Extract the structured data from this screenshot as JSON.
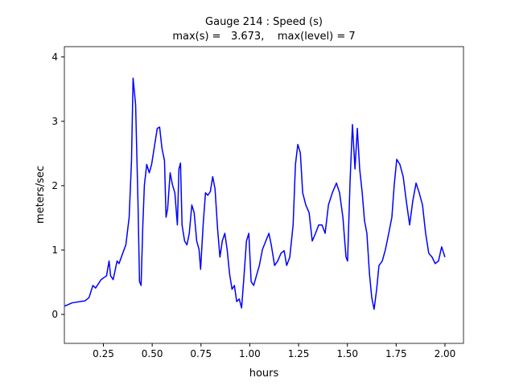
{
  "chart_data": {
    "type": "line",
    "title": "Gauge 214 : Speed (s)",
    "subtitle": "max(s) =   3.673,    max(level) = 7",
    "xlabel": "hours",
    "ylabel": "meters/sec",
    "xlim": [
      0.05,
      2.095
    ],
    "ylim": [
      -0.45,
      4.16
    ],
    "xticks": [
      {
        "value": 0.25,
        "label": "0.25"
      },
      {
        "value": 0.5,
        "label": "0.50"
      },
      {
        "value": 0.75,
        "label": "0.75"
      },
      {
        "value": 1.0,
        "label": "1.00"
      },
      {
        "value": 1.25,
        "label": "1.25"
      },
      {
        "value": 1.5,
        "label": "1.50"
      },
      {
        "value": 1.75,
        "label": "1.75"
      },
      {
        "value": 2.0,
        "label": "2.00"
      }
    ],
    "yticks": [
      0,
      1,
      2,
      3,
      4
    ],
    "x": [
      0.052,
      0.09,
      0.155,
      0.176,
      0.196,
      0.21,
      0.238,
      0.266,
      0.279,
      0.287,
      0.3,
      0.32,
      0.33,
      0.349,
      0.365,
      0.382,
      0.394,
      0.402,
      0.415,
      0.427,
      0.435,
      0.443,
      0.452,
      0.46,
      0.472,
      0.485,
      0.497,
      0.513,
      0.526,
      0.538,
      0.55,
      0.563,
      0.571,
      0.579,
      0.592,
      0.604,
      0.616,
      0.629,
      0.637,
      0.645,
      0.653,
      0.666,
      0.678,
      0.69,
      0.703,
      0.715,
      0.728,
      0.74,
      0.748,
      0.761,
      0.773,
      0.785,
      0.798,
      0.81,
      0.822,
      0.835,
      0.847,
      0.859,
      0.872,
      0.884,
      0.896,
      0.909,
      0.921,
      0.933,
      0.946,
      0.958,
      0.97,
      0.983,
      0.995,
      1.007,
      1.02,
      1.032,
      1.049,
      1.065,
      1.082,
      1.098,
      1.11,
      1.127,
      1.143,
      1.16,
      1.176,
      1.189,
      1.205,
      1.222,
      1.234,
      1.246,
      1.259,
      1.271,
      1.287,
      1.304,
      1.32,
      1.337,
      1.353,
      1.37,
      1.386,
      1.403,
      1.423,
      1.444,
      1.46,
      1.477,
      1.493,
      1.501,
      1.514,
      1.526,
      1.539,
      1.551,
      1.563,
      1.576,
      1.588,
      1.6,
      1.613,
      1.625,
      1.637,
      1.65,
      1.662,
      1.679,
      1.695,
      1.712,
      1.728,
      1.74,
      1.753,
      1.769,
      1.786,
      1.802,
      1.819,
      1.835,
      1.852,
      1.868,
      1.885,
      1.901,
      1.917,
      1.934,
      1.95,
      1.967,
      1.983,
      2.0
    ],
    "series": [
      {
        "color": "#0000ff",
        "values": [
          0.13,
          0.18,
          0.21,
          0.26,
          0.45,
          0.41,
          0.54,
          0.6,
          0.83,
          0.6,
          0.54,
          0.83,
          0.79,
          0.95,
          1.08,
          1.51,
          2.39,
          3.67,
          3.26,
          1.76,
          0.51,
          0.45,
          1.39,
          2.01,
          2.33,
          2.2,
          2.33,
          2.64,
          2.89,
          2.91,
          2.58,
          2.39,
          1.51,
          1.64,
          2.2,
          2.01,
          1.89,
          1.39,
          2.26,
          2.35,
          1.39,
          1.14,
          1.08,
          1.26,
          1.7,
          1.58,
          1.14,
          1.01,
          0.7,
          1.39,
          1.89,
          1.85,
          1.91,
          2.14,
          1.95,
          1.33,
          0.89,
          1.14,
          1.26,
          1.01,
          0.64,
          0.39,
          0.45,
          0.2,
          0.24,
          0.1,
          0.58,
          1.14,
          1.26,
          0.51,
          0.45,
          0.58,
          0.76,
          1.01,
          1.14,
          1.26,
          1.08,
          0.76,
          0.83,
          0.95,
          0.99,
          0.76,
          0.89,
          1.39,
          2.33,
          2.64,
          2.51,
          1.89,
          1.7,
          1.58,
          1.14,
          1.26,
          1.39,
          1.39,
          1.26,
          1.7,
          1.89,
          2.04,
          1.89,
          1.51,
          0.89,
          0.83,
          2.08,
          2.95,
          2.26,
          2.89,
          2.26,
          1.89,
          1.45,
          1.26,
          0.64,
          0.26,
          0.08,
          0.39,
          0.76,
          0.83,
          1.01,
          1.26,
          1.51,
          2.01,
          2.41,
          2.33,
          2.14,
          1.76,
          1.39,
          1.76,
          2.04,
          1.89,
          1.7,
          1.26,
          0.95,
          0.89,
          0.79,
          0.83,
          1.05,
          0.89
        ]
      }
    ]
  }
}
